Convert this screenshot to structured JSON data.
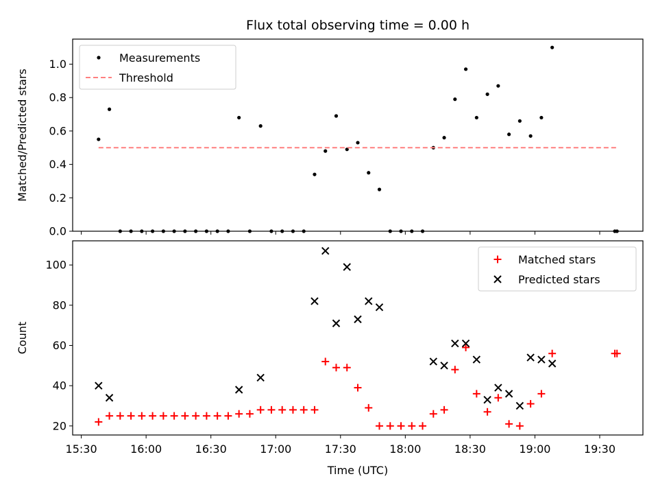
{
  "chart_data": [
    {
      "type": "scatter",
      "title": "Flux total observing time = 0.00 h",
      "xlabel": "",
      "ylabel": "Matched/Predicted stars",
      "xlim": [
        "15:26",
        "19:50"
      ],
      "ylim": [
        0,
        1.15
      ],
      "yticks": [
        0.0,
        0.2,
        0.4,
        0.6,
        0.8,
        1.0
      ],
      "ytick_labels": [
        "0.0",
        "0.2",
        "0.4",
        "0.6",
        "0.8",
        "1.0"
      ],
      "xticks": [
        "15:30",
        "16:00",
        "16:30",
        "17:00",
        "17:30",
        "18:00",
        "18:30",
        "19:00",
        "19:30"
      ],
      "show_xtick_labels": false,
      "legend_position": "upper-left",
      "series": [
        {
          "name": "Measurements",
          "kind": "points",
          "color": "#000000",
          "x": [
            "15:38",
            "15:43",
            "15:48",
            "15:53",
            "15:58",
            "16:03",
            "16:08",
            "16:13",
            "16:18",
            "16:23",
            "16:28",
            "16:33",
            "16:38",
            "16:43",
            "16:48",
            "16:53",
            "16:58",
            "17:03",
            "17:08",
            "17:13",
            "17:18",
            "17:23",
            "17:28",
            "17:33",
            "17:38",
            "17:43",
            "17:48",
            "17:53",
            "17:58",
            "18:03",
            "18:08",
            "18:13",
            "18:18",
            "18:23",
            "18:28",
            "18:33",
            "18:38",
            "18:43",
            "18:48",
            "18:53",
            "18:58",
            "19:03",
            "19:08",
            "19:37",
            "19:38"
          ],
          "y": [
            0.55,
            0.73,
            0,
            0,
            0,
            0,
            0,
            0,
            0,
            0,
            0,
            0,
            0,
            0.68,
            0,
            0.63,
            0,
            0,
            0,
            0,
            0.34,
            0.48,
            0.69,
            0.49,
            0.53,
            0.35,
            0.25,
            0,
            0,
            0,
            0,
            0.5,
            0.56,
            0.79,
            0.97,
            0.68,
            0.82,
            0.87,
            0.58,
            0.66,
            0.57,
            0.68,
            1.1,
            0,
            0
          ]
        },
        {
          "name": "Threshold",
          "kind": "dashed-line",
          "color": "#ff7f7f",
          "x": [
            "15:38",
            "19:38"
          ],
          "y": [
            0.5,
            0.5
          ]
        }
      ]
    },
    {
      "type": "scatter",
      "title": "",
      "xlabel": "Time (UTC)",
      "ylabel": "Count",
      "xlim": [
        "15:26",
        "19:50"
      ],
      "ylim": [
        15.5,
        112
      ],
      "yticks": [
        20,
        40,
        60,
        80,
        100
      ],
      "ytick_labels": [
        "20",
        "40",
        "60",
        "80",
        "100"
      ],
      "xticks": [
        "15:30",
        "16:00",
        "16:30",
        "17:00",
        "17:30",
        "18:00",
        "18:30",
        "19:00",
        "19:30"
      ],
      "show_xtick_labels": true,
      "legend_position": "upper-right",
      "series": [
        {
          "name": "Matched stars",
          "kind": "plus",
          "color": "#ff0000",
          "x": [
            "15:38",
            "15:43",
            "15:48",
            "15:53",
            "15:58",
            "16:03",
            "16:08",
            "16:13",
            "16:18",
            "16:23",
            "16:28",
            "16:33",
            "16:38",
            "16:43",
            "16:48",
            "16:53",
            "16:58",
            "17:03",
            "17:08",
            "17:13",
            "17:18",
            "17:23",
            "17:28",
            "17:33",
            "17:38",
            "17:43",
            "17:48",
            "17:53",
            "17:58",
            "18:03",
            "18:08",
            "18:13",
            "18:18",
            "18:23",
            "18:28",
            "18:33",
            "18:38",
            "18:43",
            "18:48",
            "18:53",
            "18:58",
            "19:03",
            "19:08",
            "19:37",
            "19:38"
          ],
          "y": [
            22,
            25,
            25,
            25,
            25,
            25,
            25,
            25,
            25,
            25,
            25,
            25,
            25,
            26,
            26,
            28,
            28,
            28,
            28,
            28,
            28,
            52,
            49,
            49,
            39,
            29,
            20,
            20,
            20,
            20,
            20,
            26,
            28,
            48,
            59,
            36,
            27,
            34,
            21,
            20,
            31,
            36,
            56,
            56,
            56
          ]
        },
        {
          "name": "Predicted stars",
          "kind": "x",
          "color": "#000000",
          "x": [
            "15:38",
            "15:43",
            "16:43",
            "16:53",
            "17:18",
            "17:23",
            "17:28",
            "17:33",
            "17:38",
            "17:43",
            "17:48",
            "18:13",
            "18:18",
            "18:23",
            "18:28",
            "18:33",
            "18:38",
            "18:43",
            "18:48",
            "18:53",
            "18:58",
            "19:03",
            "19:08"
          ],
          "y": [
            40,
            34,
            38,
            44,
            82,
            107,
            71,
            99,
            73,
            82,
            79,
            52,
            50,
            61,
            61,
            53,
            33,
            39,
            36,
            30,
            54,
            53,
            51
          ]
        }
      ]
    }
  ]
}
